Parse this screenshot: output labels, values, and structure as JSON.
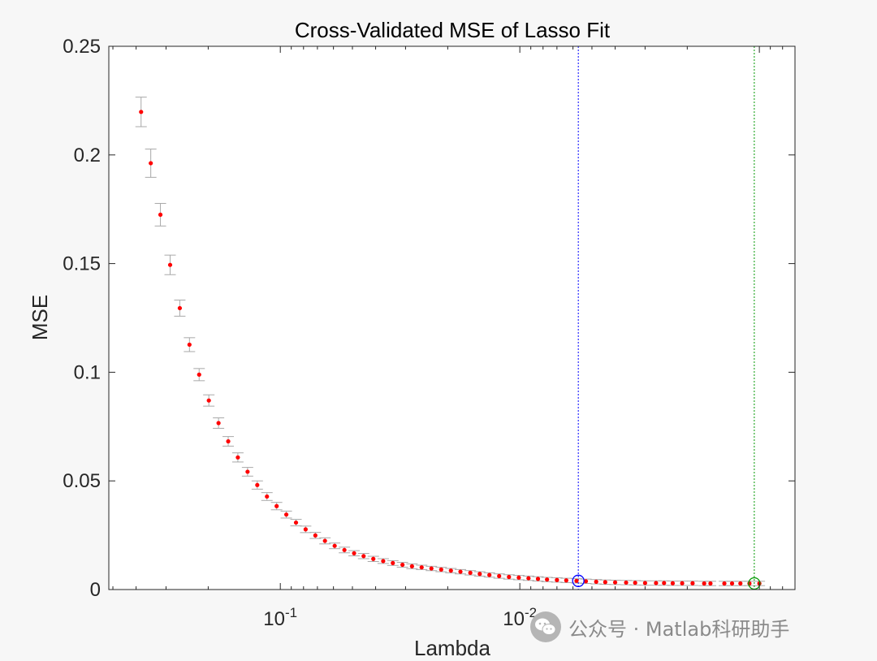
{
  "chart_data": {
    "type": "scatter",
    "title": "Cross-Validated MSE of Lasso Fit",
    "xlabel": "Lambda",
    "ylabel": "MSE",
    "x_scale": "log",
    "x_direction": "reversed",
    "xlim": [
      0.52,
      0.00071
    ],
    "ylim": [
      0,
      0.25
    ],
    "yticks": [
      0,
      0.05,
      0.1,
      0.15,
      0.2,
      0.25
    ],
    "ytick_labels": [
      "0",
      "0.05",
      "0.1",
      "0.15",
      "0.2",
      "0.25"
    ],
    "xticks": [
      {
        "value": 0.1,
        "base": "10",
        "exponent": "-1"
      },
      {
        "value": 0.01,
        "base": "10",
        "exponent": "-2"
      }
    ],
    "grid": false,
    "lambda": [
      0.3813,
      0.3474,
      0.3166,
      0.2884,
      0.2628,
      0.2395,
      0.2182,
      0.1988,
      0.1811,
      0.165,
      0.1504,
      0.137,
      0.1248,
      0.1137,
      0.1036,
      0.0944,
      0.086,
      0.0784,
      0.0714,
      0.0651,
      0.0593,
      0.054,
      0.0492,
      0.0449,
      0.0409,
      0.0372,
      0.0339,
      0.0309,
      0.0282,
      0.0257,
      0.0234,
      0.0213,
      0.0194,
      0.0177,
      0.0161,
      0.0147,
      0.0134,
      0.0122,
      0.0111,
      0.0101,
      0.0092,
      0.0084,
      0.0077,
      0.007,
      0.0064,
      0.0058,
      0.0053,
      0.0048,
      0.0044,
      0.004,
      0.0036,
      0.0033,
      0.003,
      0.0027,
      0.0025,
      0.0023,
      0.0021,
      0.0019,
      0.0017,
      0.0016,
      0.0014,
      0.0013,
      0.0012,
      0.0011,
      0.001
    ],
    "mse": [
      0.2198,
      0.1962,
      0.1725,
      0.1494,
      0.1295,
      0.1127,
      0.0989,
      0.087,
      0.0766,
      0.0682,
      0.0608,
      0.0542,
      0.0481,
      0.0428,
      0.0384,
      0.0345,
      0.0308,
      0.0277,
      0.0249,
      0.0224,
      0.0201,
      0.0182,
      0.0167,
      0.0154,
      0.0141,
      0.0131,
      0.0122,
      0.0114,
      0.0107,
      0.0102,
      0.0097,
      0.0092,
      0.0087,
      0.0082,
      0.0077,
      0.0072,
      0.0067,
      0.0062,
      0.0058,
      0.0055,
      0.0052,
      0.0049,
      0.0046,
      0.0044,
      0.0042,
      0.004,
      0.0038,
      0.0036,
      0.0034,
      0.0033,
      0.0032,
      0.0031,
      0.003,
      0.003,
      0.003,
      0.0029,
      0.0029,
      0.0029,
      0.0028,
      0.0028,
      0.0028,
      0.0028,
      0.0028,
      0.0028,
      0.0028
    ],
    "se": [
      0.0068,
      0.0065,
      0.0052,
      0.0045,
      0.0037,
      0.0032,
      0.0028,
      0.0026,
      0.0024,
      0.0022,
      0.0021,
      0.002,
      0.0019,
      0.0018,
      0.0017,
      0.0016,
      0.0015,
      0.0015,
      0.0014,
      0.0014,
      0.0013,
      0.0013,
      0.0012,
      0.0012,
      0.0012,
      0.0011,
      0.0011,
      0.0011,
      0.0011,
      0.001,
      0.001,
      0.001,
      0.001,
      0.001,
      0.001,
      0.001,
      0.001,
      0.001,
      0.001,
      0.001,
      0.001,
      0.001,
      0.001,
      0.001,
      0.001,
      0.001,
      0.001,
      0.001,
      0.001,
      0.001,
      0.001,
      0.001,
      0.001,
      0.001,
      0.001,
      0.001,
      0.001,
      0.001,
      0.001,
      0.001,
      0.001,
      0.001,
      0.001,
      0.001,
      0.001
    ],
    "lambda_1se": 0.0057,
    "lambda_min": 0.00105,
    "colors": {
      "points": "#ff0000",
      "errorbars": "#a8a8a8",
      "lambda_1se_line": "#0000ff",
      "lambda_min_line": "#009900",
      "axes": "#262626",
      "plot_background": "#ffffff"
    }
  },
  "watermark": {
    "text": "公众号 · Matlab科研助手",
    "icon": "wechat-icon"
  }
}
